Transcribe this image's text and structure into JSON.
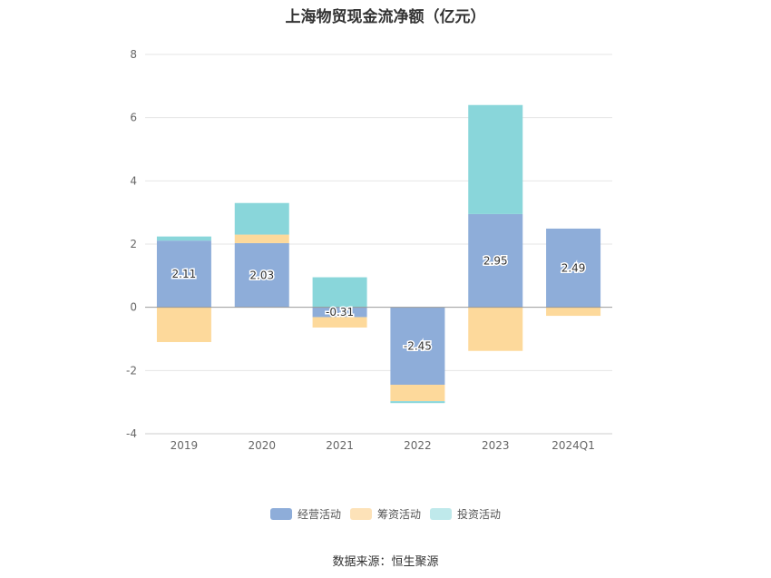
{
  "chart_data": {
    "type": "bar",
    "stacked": true,
    "title": "上海物贸现金流净额（亿元）",
    "categories": [
      "2019",
      "2020",
      "2021",
      "2022",
      "2023",
      "2024Q1"
    ],
    "ylim": [
      -4,
      8
    ],
    "yticks": [
      -4,
      -2,
      0,
      2,
      4,
      6,
      8
    ],
    "grid": true,
    "legend_position": "bottom",
    "series": [
      {
        "name": "经营活动",
        "color": "#8eadd9",
        "values": [
          2.11,
          2.03,
          -0.31,
          -2.45,
          2.95,
          2.49
        ],
        "labels": [
          "2.11",
          "2.03",
          "-0.31",
          "-2.45",
          "2.95",
          "2.49"
        ]
      },
      {
        "name": "筹资活动",
        "color": "#fdd99b",
        "values": [
          -1.1,
          0.27,
          -0.33,
          -0.52,
          -1.38,
          -0.27
        ]
      },
      {
        "name": "投资活动",
        "color": "#89d6da",
        "values": [
          0.13,
          1.0,
          0.95,
          -0.06,
          3.45,
          0.0
        ]
      }
    ]
  },
  "legend": [
    {
      "label": "经营活动",
      "color": "#8eadd9"
    },
    {
      "label": "筹资活动",
      "color": "#fde2b8"
    },
    {
      "label": "投资活动",
      "color": "#bfe9eb"
    }
  ],
  "source": "数据来源：恒生聚源"
}
